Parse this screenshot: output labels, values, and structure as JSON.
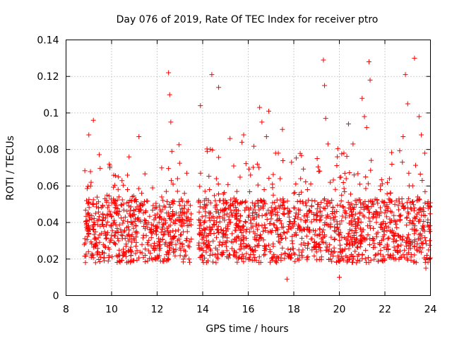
{
  "chart_data": {
    "type": "scatter",
    "title": "Day 076 of 2019, Rate Of TEC Index for receiver ptro",
    "xlabel": "GPS time / hours",
    "ylabel": "ROTI / TECUs",
    "xlim": [
      8,
      24
    ],
    "ylim": [
      0,
      0.14
    ],
    "x_ticks": [
      "8",
      "10",
      "12",
      "14",
      "16",
      "18",
      "20",
      "22",
      "24"
    ],
    "y_ticks": [
      "0",
      "0.02",
      "0.04",
      "0.06",
      "0.08",
      "0.1",
      "0.12",
      "0.14"
    ],
    "grid": true,
    "marker": "plus",
    "color": "#ff0000",
    "series": [
      {
        "name": "ROTI",
        "points": [
          [
            8.8,
            0.028
          ],
          [
            8.9,
            0.052
          ],
          [
            9.0,
            0.088
          ],
          [
            9.05,
            0.036
          ],
          [
            9.1,
            0.062
          ],
          [
            9.2,
            0.096
          ],
          [
            9.25,
            0.031
          ],
          [
            9.3,
            0.045
          ],
          [
            9.4,
            0.024
          ],
          [
            9.5,
            0.038
          ],
          [
            9.6,
            0.041
          ],
          [
            9.7,
            0.027
          ],
          [
            9.8,
            0.055
          ],
          [
            9.9,
            0.072
          ],
          [
            10.0,
            0.033
          ],
          [
            10.1,
            0.029
          ],
          [
            10.2,
            0.048
          ],
          [
            10.3,
            0.065
          ],
          [
            10.4,
            0.036
          ],
          [
            10.5,
            0.022
          ],
          [
            10.6,
            0.043
          ],
          [
            10.7,
            0.058
          ],
          [
            10.8,
            0.031
          ],
          [
            10.9,
            0.039
          ],
          [
            11.0,
            0.052
          ],
          [
            11.1,
            0.035
          ],
          [
            11.2,
            0.087
          ],
          [
            11.3,
            0.047
          ],
          [
            11.4,
            0.033
          ],
          [
            11.5,
            0.041
          ],
          [
            11.6,
            0.028
          ],
          [
            11.7,
            0.036
          ],
          [
            11.8,
            0.059
          ],
          [
            11.9,
            0.044
          ],
          [
            12.0,
            0.038
          ],
          [
            12.1,
            0.049
          ],
          [
            12.2,
            0.054
          ],
          [
            12.3,
            0.042
          ],
          [
            12.4,
            0.057
          ],
          [
            12.5,
            0.122
          ],
          [
            12.55,
            0.11
          ],
          [
            12.6,
            0.095
          ],
          [
            12.65,
            0.079
          ],
          [
            12.7,
            0.061
          ],
          [
            12.8,
            0.041
          ],
          [
            12.9,
            0.03
          ],
          [
            13.0,
            0.026
          ],
          [
            13.1,
            0.038
          ],
          [
            13.2,
            0.056
          ],
          [
            13.3,
            0.067
          ],
          [
            13.4,
            0.02
          ],
          [
            13.5,
            0.031
          ],
          [
            13.9,
            0.104
          ],
          [
            14.0,
            0.033
          ],
          [
            14.1,
            0.048
          ],
          [
            14.2,
            0.079
          ],
          [
            14.3,
            0.058
          ],
          [
            14.4,
            0.121
          ],
          [
            14.5,
            0.041
          ],
          [
            14.6,
            0.064
          ],
          [
            14.7,
            0.114
          ],
          [
            14.8,
            0.036
          ],
          [
            14.9,
            0.029
          ],
          [
            15.0,
            0.052
          ],
          [
            15.1,
            0.038
          ],
          [
            15.2,
            0.086
          ],
          [
            15.3,
            0.044
          ],
          [
            15.4,
            0.031
          ],
          [
            15.5,
            0.057
          ],
          [
            15.6,
            0.041
          ],
          [
            15.7,
            0.027
          ],
          [
            15.8,
            0.088
          ],
          [
            15.9,
            0.035
          ],
          [
            16.0,
            0.043
          ],
          [
            16.1,
            0.066
          ],
          [
            16.2,
            0.038
          ],
          [
            16.3,
            0.049
          ],
          [
            16.4,
            0.072
          ],
          [
            16.5,
            0.103
          ],
          [
            16.6,
            0.095
          ],
          [
            16.7,
            0.058
          ],
          [
            16.8,
            0.087
          ],
          [
            16.9,
            0.101
          ],
          [
            17.0,
            0.042
          ],
          [
            17.1,
            0.055
          ],
          [
            17.2,
            0.078
          ],
          [
            17.3,
            0.036
          ],
          [
            17.4,
            0.064
          ],
          [
            17.5,
            0.091
          ],
          [
            17.6,
            0.048
          ],
          [
            17.7,
            0.009
          ],
          [
            17.8,
            0.039
          ],
          [
            17.9,
            0.073
          ],
          [
            18.0,
            0.056
          ],
          [
            18.1,
            0.033
          ],
          [
            18.2,
            0.047
          ],
          [
            18.3,
            0.064
          ],
          [
            18.4,
            0.025
          ],
          [
            18.5,
            0.041
          ],
          [
            18.6,
            0.058
          ],
          [
            18.7,
            0.036
          ],
          [
            18.8,
            0.052
          ],
          [
            18.9,
            0.029
          ],
          [
            19.0,
            0.044
          ],
          [
            19.1,
            0.068
          ],
          [
            19.2,
            0.051
          ],
          [
            19.3,
            0.129
          ],
          [
            19.35,
            0.115
          ],
          [
            19.4,
            0.097
          ],
          [
            19.5,
            0.083
          ],
          [
            19.6,
            0.062
          ],
          [
            19.7,
            0.046
          ],
          [
            19.8,
            0.031
          ],
          [
            19.9,
            0.037
          ],
          [
            20.0,
            0.01
          ],
          [
            20.1,
            0.055
          ],
          [
            20.2,
            0.078
          ],
          [
            20.3,
            0.064
          ],
          [
            20.4,
            0.094
          ],
          [
            20.5,
            0.047
          ],
          [
            20.6,
            0.083
          ],
          [
            20.7,
            0.052
          ],
          [
            20.8,
            0.039
          ],
          [
            20.9,
            0.061
          ],
          [
            21.0,
            0.108
          ],
          [
            21.1,
            0.098
          ],
          [
            21.2,
            0.092
          ],
          [
            21.3,
            0.128
          ],
          [
            21.35,
            0.118
          ],
          [
            21.4,
            0.074
          ],
          [
            21.5,
            0.031
          ],
          [
            21.6,
            0.046
          ],
          [
            21.7,
            0.023
          ],
          [
            21.8,
            0.058
          ],
          [
            21.9,
            0.036
          ],
          [
            22.0,
            0.049
          ],
          [
            22.1,
            0.028
          ],
          [
            22.2,
            0.064
          ],
          [
            22.3,
            0.041
          ],
          [
            22.4,
            0.033
          ],
          [
            22.5,
            0.052
          ],
          [
            22.6,
            0.027
          ],
          [
            22.7,
            0.044
          ],
          [
            22.8,
            0.087
          ],
          [
            22.9,
            0.121
          ],
          [
            23.0,
            0.105
          ],
          [
            23.05,
            0.067
          ],
          [
            23.1,
            0.041
          ],
          [
            23.2,
            0.029
          ],
          [
            23.3,
            0.13
          ],
          [
            23.4,
            0.052
          ],
          [
            23.5,
            0.098
          ],
          [
            23.6,
            0.088
          ],
          [
            23.7,
            0.046
          ],
          [
            23.75,
            0.078
          ],
          [
            23.8,
            0.015
          ]
        ]
      }
    ]
  }
}
